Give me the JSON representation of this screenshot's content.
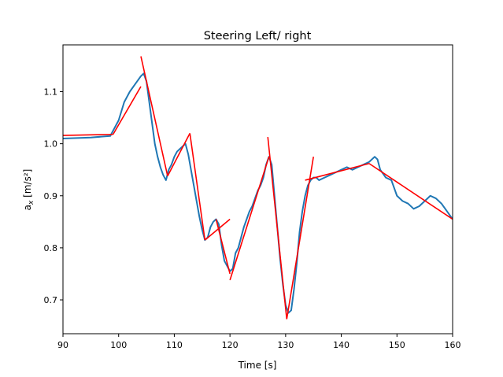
{
  "chart_data": {
    "type": "line",
    "title": "Steering Left/ right",
    "xlabel": "Time [s]",
    "ylabel_main": "a",
    "ylabel_sub": "x",
    "ylabel_unit": " [m/s²]",
    "xlim": [
      90,
      160
    ],
    "ylim": [
      0.635,
      1.19
    ],
    "x_ticks": [
      90,
      100,
      110,
      120,
      130,
      140,
      150,
      160
    ],
    "x_tick_labels": [
      "90",
      "100",
      "110",
      "120",
      "130",
      "140",
      "150",
      "160"
    ],
    "y_ticks": [
      0.7,
      0.8,
      0.9,
      1.0,
      1.1
    ],
    "y_tick_labels": [
      "0.7",
      "0.8",
      "0.9",
      "1.0",
      "1.1"
    ],
    "grid": false,
    "legend": "none",
    "series": [
      {
        "color": "#1f77b4",
        "x": [
          90,
          95,
          98.5,
          100,
          101,
          102,
          103,
          104,
          104.5,
          105,
          105.5,
          106,
          106.5,
          107,
          107.5,
          108,
          108.5,
          109,
          109.5,
          110,
          110.5,
          111,
          111.5,
          112,
          112.5,
          113,
          113.5,
          114,
          114.5,
          115,
          115.5,
          116,
          116.5,
          117,
          117.5,
          118,
          118.5,
          119,
          119.5,
          120,
          120.5,
          121,
          121.5,
          122,
          122.5,
          123,
          123.5,
          124,
          124.5,
          125,
          125.5,
          126,
          126.5,
          127,
          127.5,
          128,
          128.5,
          129,
          129.5,
          130,
          130.5,
          131,
          131.5,
          132,
          132.5,
          133,
          133.5,
          134,
          134.5,
          135,
          135.5,
          136,
          137,
          138,
          139,
          140,
          141,
          142,
          143,
          144,
          145,
          146,
          146.5,
          147,
          148,
          149,
          150,
          151,
          152,
          153,
          154,
          155,
          156,
          157,
          158,
          159,
          160
        ],
        "y": [
          1.01,
          1.012,
          1.015,
          1.045,
          1.08,
          1.1,
          1.115,
          1.13,
          1.135,
          1.12,
          1.08,
          1.04,
          1.0,
          0.975,
          0.955,
          0.94,
          0.93,
          0.95,
          0.96,
          0.975,
          0.985,
          0.99,
          0.995,
          1.0,
          0.98,
          0.95,
          0.92,
          0.89,
          0.86,
          0.835,
          0.815,
          0.82,
          0.84,
          0.85,
          0.855,
          0.845,
          0.805,
          0.775,
          0.765,
          0.755,
          0.76,
          0.79,
          0.8,
          0.82,
          0.84,
          0.855,
          0.87,
          0.88,
          0.895,
          0.91,
          0.92,
          0.935,
          0.96,
          0.975,
          0.96,
          0.9,
          0.84,
          0.78,
          0.73,
          0.69,
          0.675,
          0.68,
          0.72,
          0.77,
          0.83,
          0.87,
          0.9,
          0.92,
          0.93,
          0.935,
          0.935,
          0.93,
          0.935,
          0.94,
          0.945,
          0.95,
          0.955,
          0.95,
          0.955,
          0.96,
          0.965,
          0.975,
          0.97,
          0.95,
          0.935,
          0.93,
          0.9,
          0.89,
          0.885,
          0.875,
          0.88,
          0.89,
          0.9,
          0.895,
          0.885,
          0.87,
          0.855
        ]
      },
      {
        "color": "#ff0000",
        "segments": [
          {
            "x": [
              90,
              99
            ],
            "y": [
              1.016,
              1.018
            ]
          },
          {
            "x": [
              99,
              104
            ],
            "y": [
              1.018,
              1.11
            ]
          },
          {
            "x": [
              104,
              108.8
            ],
            "y": [
              1.168,
              0.938
            ]
          },
          {
            "x": [
              108.8,
              112.8
            ],
            "y": [
              0.938,
              1.02
            ]
          },
          {
            "x": [
              112.8,
              115.5
            ],
            "y": [
              1.02,
              0.815
            ]
          },
          {
            "x": [
              115.5,
              120
            ],
            "y": [
              0.815,
              0.855
            ]
          },
          {
            "x": [
              117.5,
              120
            ],
            "y": [
              0.855,
              0.75
            ]
          },
          {
            "x": [
              120,
              127
            ],
            "y": [
              0.738,
              0.975
            ]
          },
          {
            "x": [
              126.8,
              130.2
            ],
            "y": [
              1.013,
              0.663
            ]
          },
          {
            "x": [
              130.2,
              135
            ],
            "y": [
              0.663,
              0.975
            ]
          },
          {
            "x": [
              133.5,
              145
            ],
            "y": [
              0.93,
              0.962
            ]
          },
          {
            "x": [
              145,
              160
            ],
            "y": [
              0.962,
              0.855
            ]
          }
        ]
      }
    ]
  }
}
